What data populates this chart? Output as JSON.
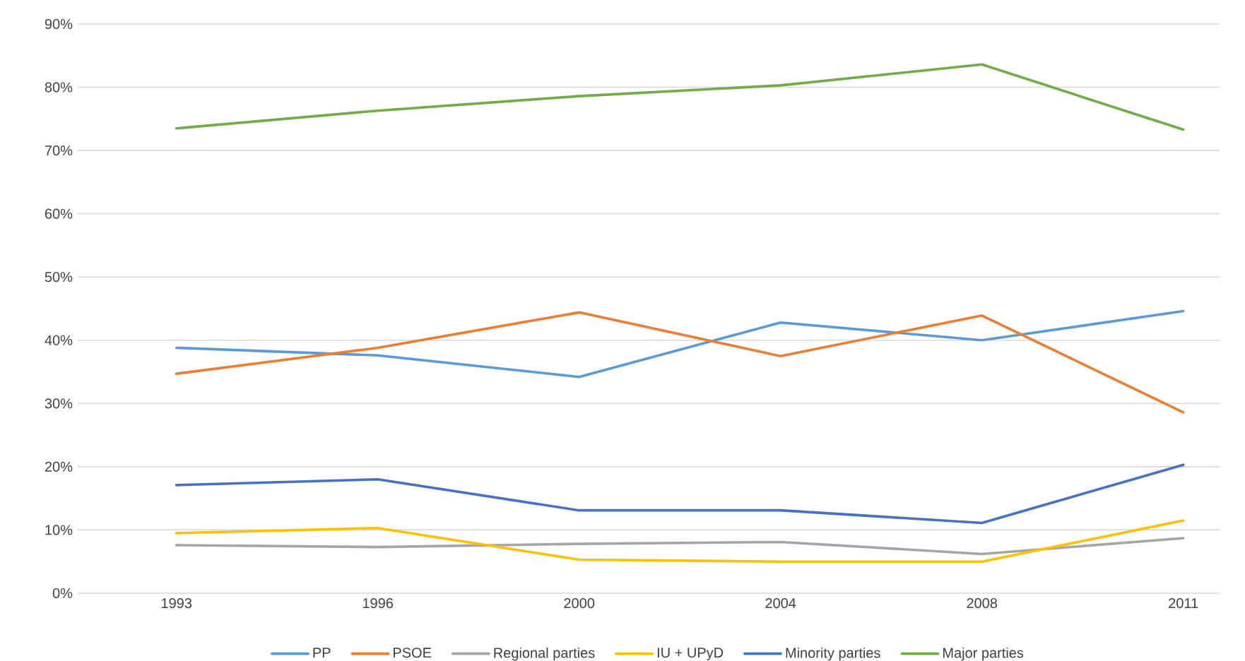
{
  "chart_data": {
    "type": "line",
    "categories": [
      "1993",
      "1996",
      "2000",
      "2004",
      "2008",
      "2011"
    ],
    "series": [
      {
        "name": "PP",
        "color": "#5b9bd5",
        "values": [
          38.8,
          37.6,
          34.2,
          42.8,
          40.0,
          44.6
        ]
      },
      {
        "name": "PSOE",
        "color": "#ed7d31",
        "values": [
          34.7,
          38.8,
          44.4,
          37.5,
          43.9,
          28.6
        ]
      },
      {
        "name": "Regional parties",
        "color": "#a5a5a5",
        "values": [
          7.6,
          7.3,
          7.8,
          8.1,
          6.2,
          8.7
        ]
      },
      {
        "name": "IU + UPyD",
        "color": "#ffc000",
        "values": [
          9.5,
          10.3,
          5.3,
          5.0,
          5.0,
          11.5
        ]
      },
      {
        "name": "Minority parties",
        "color": "#4472c4",
        "values": [
          17.1,
          18.0,
          13.1,
          13.1,
          11.1,
          20.3
        ]
      },
      {
        "name": "Major parties",
        "color": "#70ad47",
        "values": [
          73.5,
          76.3,
          78.6,
          80.3,
          83.6,
          73.3
        ]
      }
    ],
    "ylim": [
      0,
      90
    ],
    "yticks": [
      {
        "value": 0,
        "label": "0%"
      },
      {
        "value": 10,
        "label": "10%"
      },
      {
        "value": 20,
        "label": "20%"
      },
      {
        "value": 30,
        "label": "30%"
      },
      {
        "value": 40,
        "label": "40%"
      },
      {
        "value": 50,
        "label": "50%"
      },
      {
        "value": 60,
        "label": "60%"
      },
      {
        "value": 70,
        "label": "70%"
      },
      {
        "value": 80,
        "label": "80%"
      },
      {
        "value": 90,
        "label": "90%"
      }
    ],
    "grid": "y",
    "legend": "bottom",
    "marker": "none",
    "line_style": "solid"
  }
}
